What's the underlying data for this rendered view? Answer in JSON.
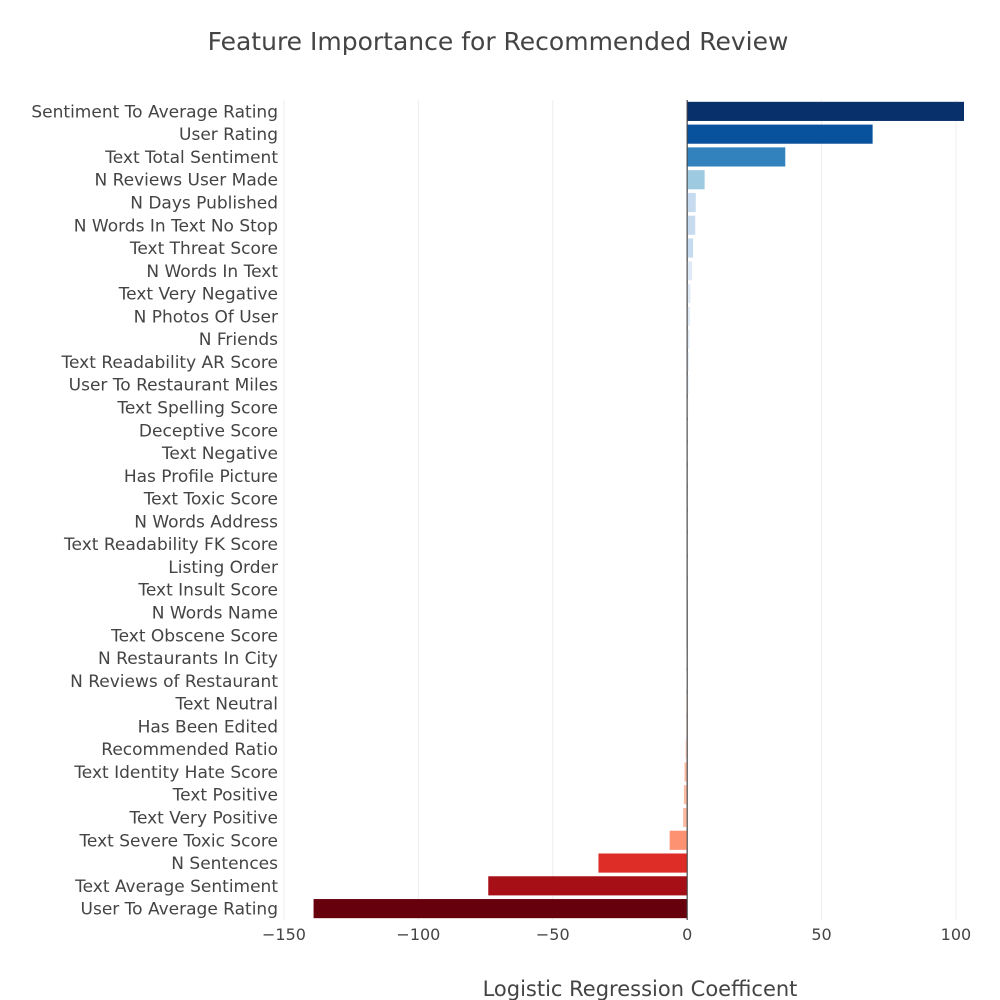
{
  "chart_data": {
    "type": "bar",
    "orientation": "horizontal",
    "title": "Feature Importance for Recommended Review",
    "xlabel": "Logistic Regression Coefficent",
    "ylabel": "",
    "xlim": [
      -150,
      103
    ],
    "xticks": [
      -150,
      -100,
      -50,
      0,
      50,
      100
    ],
    "xtick_labels": [
      "−150",
      "−100",
      "−50",
      "0",
      "50",
      "100"
    ],
    "grid": true,
    "legend": "none",
    "categories": [
      "Sentiment To Average Rating",
      "User Rating",
      "Text Total Sentiment",
      "N Reviews User Made",
      "N Days Published",
      "N Words In Text No Stop",
      "Text Threat Score",
      "N Words In Text",
      "Text Very Negative",
      "N Photos Of User",
      "N Friends",
      "Text Readability AR Score",
      "User To Restaurant Miles",
      "Text Spelling Score",
      "Deceptive Score",
      "Text Negative",
      "Has Profile Picture",
      "Text Toxic Score",
      "N Words Address",
      "Text Readability FK Score",
      "Listing Order",
      "Text Insult Score",
      "N Words Name",
      "Text Obscene Score",
      "N Restaurants In City",
      "N Reviews of Restaurant",
      "Text Neutral",
      "Has Been Edited",
      "Recommended Ratio",
      "Text Identity Hate Score",
      "Text Positive",
      "Text Very Positive",
      "Text Severe Toxic Score",
      "N Sentences",
      "Text Average Sentiment",
      "User To Average Rating"
    ],
    "values": [
      103,
      69,
      36.5,
      6.5,
      3.2,
      3.0,
      2.2,
      1.8,
      1.2,
      1.0,
      0.8,
      0.6,
      0.5,
      0.4,
      0.3,
      0.3,
      0.2,
      0.2,
      0.2,
      0.1,
      0.1,
      0.0,
      -0.1,
      -0.1,
      -0.2,
      -0.3,
      -0.3,
      -0.4,
      -0.6,
      -1.0,
      -1.2,
      -1.5,
      -6.5,
      -33,
      -74,
      -139
    ],
    "colors": [
      "#08306b",
      "#08519c",
      "#3182bd",
      "#9ecae1",
      "#c6dbef",
      "#c6dbef",
      "#c6dbef",
      "#deebf7",
      "#deebf7",
      "#deebf7",
      "#deebf7",
      "#deebf7",
      "#deebf7",
      "#eef4fb",
      "#eef4fb",
      "#eef4fb",
      "#eef4fb",
      "#eef4fb",
      "#f7f7f7",
      "#f7f7f7",
      "#f7f7f7",
      "#f7f7f7",
      "#fdeee6",
      "#fdeee6",
      "#fdeee6",
      "#fdeee6",
      "#fde0d2",
      "#fde0d2",
      "#fcd0bd",
      "#fcbba1",
      "#fcbba1",
      "#fcbba1",
      "#fc9272",
      "#de2d26",
      "#a50f15",
      "#67000d"
    ]
  }
}
